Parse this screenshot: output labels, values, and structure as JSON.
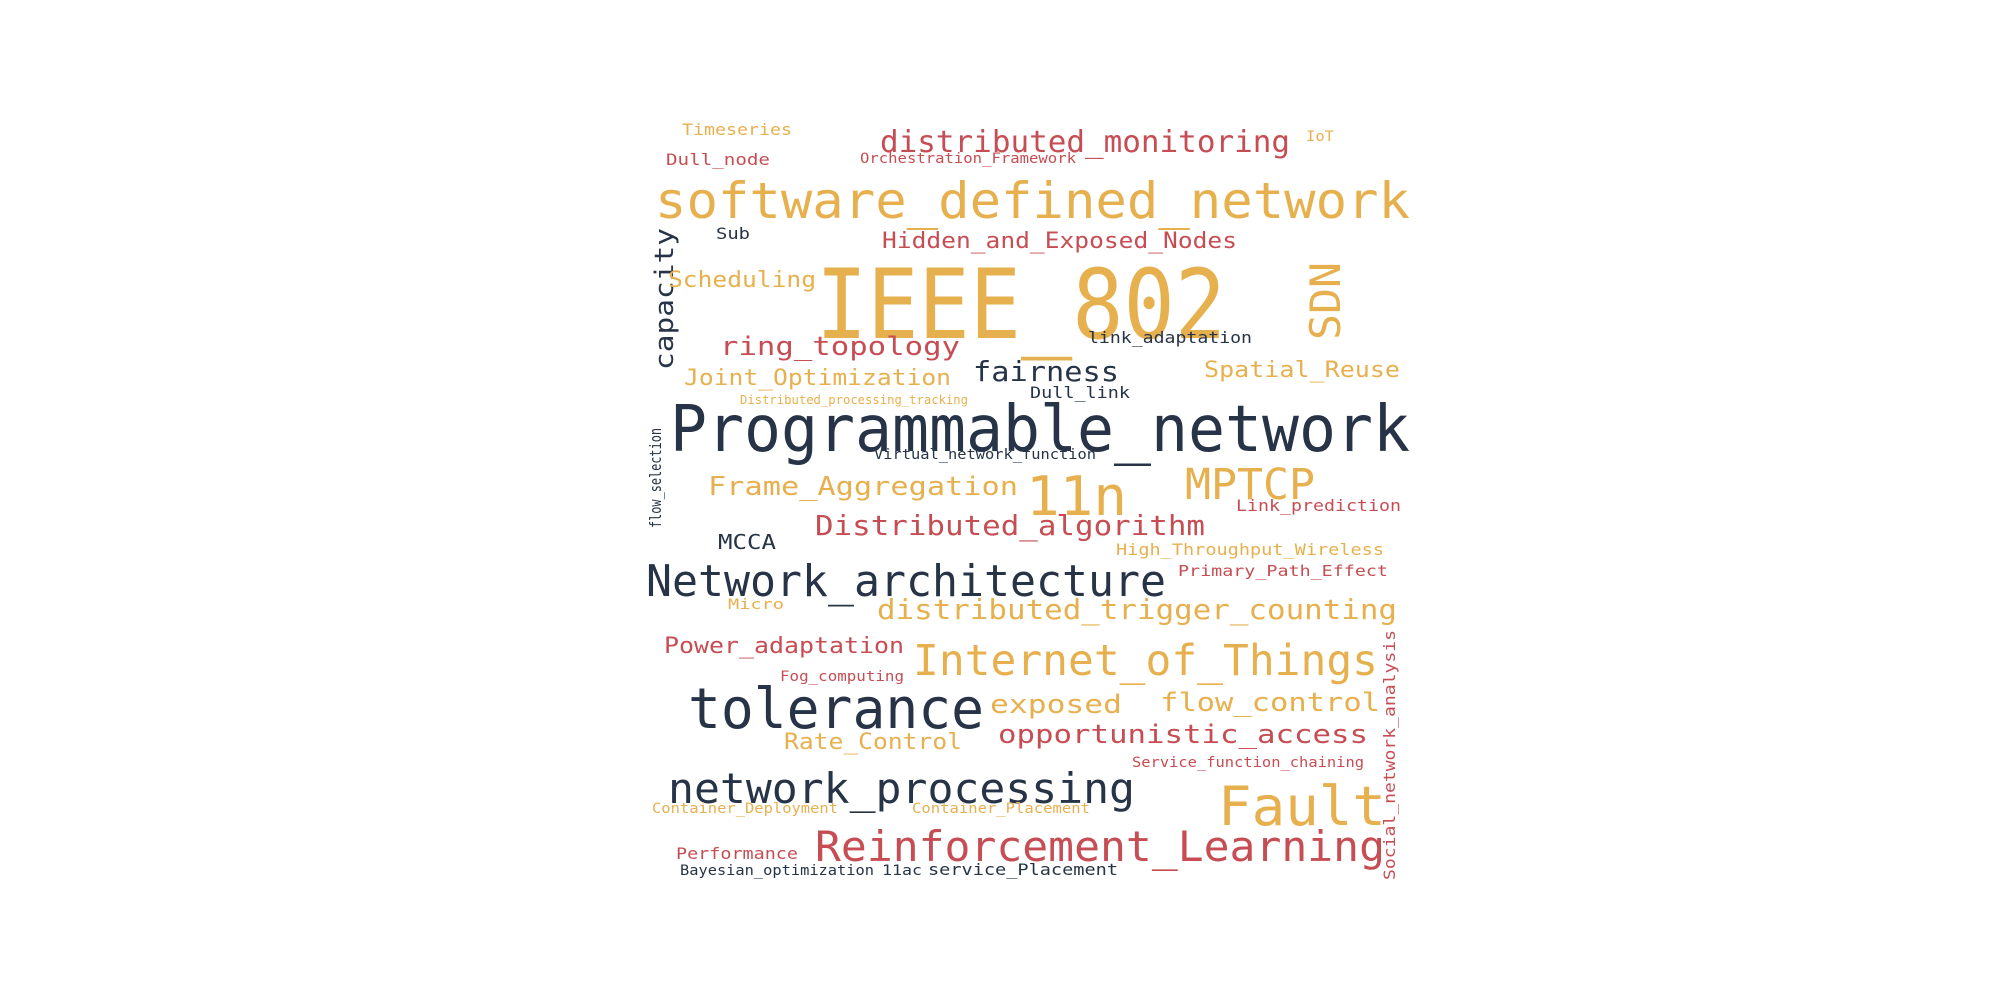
{
  "palette": {
    "gold": "#e7b04f",
    "red": "#c64d53",
    "navy": "#273447",
    "background": "#ffffff"
  },
  "words": [
    {
      "text": "IEEE_802",
      "color": "gold"
    },
    {
      "text": "Programmable_network",
      "color": "navy"
    },
    {
      "text": "software_defined_network",
      "color": "gold"
    },
    {
      "text": "Network_architecture",
      "color": "navy"
    },
    {
      "text": "tolerance",
      "color": "navy"
    },
    {
      "text": "Internet_of_Things",
      "color": "gold"
    },
    {
      "text": "network_processing",
      "color": "navy"
    },
    {
      "text": "Reinforcement_Learning",
      "color": "red"
    },
    {
      "text": "Fault",
      "color": "gold"
    },
    {
      "text": "11n",
      "color": "gold"
    },
    {
      "text": "MPTCP",
      "color": "gold"
    },
    {
      "text": "SDN",
      "color": "gold"
    },
    {
      "text": "distributed_monitoring",
      "color": "red"
    },
    {
      "text": "Distributed_algorithm",
      "color": "red"
    },
    {
      "text": "distributed_trigger_counting",
      "color": "gold"
    },
    {
      "text": "Hidden_and_Exposed_Nodes",
      "color": "red"
    },
    {
      "text": "ring_topology",
      "color": "red"
    },
    {
      "text": "fairness",
      "color": "navy"
    },
    {
      "text": "Frame_Aggregation",
      "color": "gold"
    },
    {
      "text": "Joint_Optimization",
      "color": "gold"
    },
    {
      "text": "Spatial_Reuse",
      "color": "gold"
    },
    {
      "text": "capacity",
      "color": "navy"
    },
    {
      "text": "opportunistic_access",
      "color": "red"
    },
    {
      "text": "flow_control",
      "color": "gold"
    },
    {
      "text": "exposed",
      "color": "gold"
    },
    {
      "text": "Power_adaptation",
      "color": "red"
    },
    {
      "text": "Rate_Control",
      "color": "gold"
    },
    {
      "text": "Scheduling",
      "color": "gold"
    },
    {
      "text": "MCCA",
      "color": "navy"
    },
    {
      "text": "link_adaptation",
      "color": "navy"
    },
    {
      "text": "Dull_link",
      "color": "navy"
    },
    {
      "text": "Virtual_network_function",
      "color": "navy"
    },
    {
      "text": "Link_prediction",
      "color": "red"
    },
    {
      "text": "High_Throughput_Wireless",
      "color": "gold"
    },
    {
      "text": "Primary_Path_Effect",
      "color": "red"
    },
    {
      "text": "Performance",
      "color": "red"
    },
    {
      "text": "Service_function_chaining",
      "color": "red"
    },
    {
      "text": "Container_Deployment",
      "color": "gold"
    },
    {
      "text": "Container_Placement",
      "color": "gold"
    },
    {
      "text": "Bayesian_optimization",
      "color": "navy"
    },
    {
      "text": "11ac",
      "color": "navy"
    },
    {
      "text": "service_Placement",
      "color": "navy"
    },
    {
      "text": "Fog_computing",
      "color": "red"
    },
    {
      "text": "Micro",
      "color": "gold"
    },
    {
      "text": "flow_selection",
      "color": "navy"
    },
    {
      "text": "Social_network_analysis",
      "color": "red"
    },
    {
      "text": "Distributed_processing_tracking",
      "color": "gold"
    },
    {
      "text": "Timeseries",
      "color": "gold"
    },
    {
      "text": "IoT",
      "color": "gold"
    },
    {
      "text": "Dull_node",
      "color": "red"
    },
    {
      "text": "Orchestration_Framework",
      "color": "red"
    },
    {
      "text": "Sub",
      "color": "navy"
    }
  ]
}
